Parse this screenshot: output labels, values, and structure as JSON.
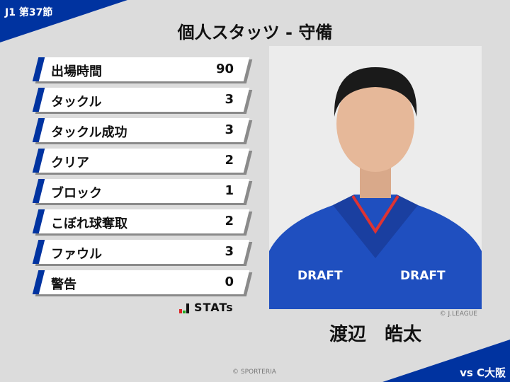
{
  "header": {
    "round": "J1 第37節",
    "title": "個人スタッツ - 守備"
  },
  "stats": [
    {
      "label": "出場時間",
      "value": "90"
    },
    {
      "label": "タックル",
      "value": "3"
    },
    {
      "label": "タックル成功",
      "value": "3"
    },
    {
      "label": "クリア",
      "value": "2"
    },
    {
      "label": "ブロック",
      "value": "1"
    },
    {
      "label": "こぼれ球奪取",
      "value": "2"
    },
    {
      "label": "ファウル",
      "value": "3"
    },
    {
      "label": "警告",
      "value": "0"
    }
  ],
  "logo": {
    "text": "STATs"
  },
  "player": {
    "name": "渡辺　皓太",
    "photo_credit": "© J.LEAGUE",
    "shirt_sponsor": "DRAFT"
  },
  "footer": {
    "copyright": "© SPORTERIA",
    "opponent": "vs  C大阪"
  },
  "colors": {
    "accent": "#0033a0",
    "background": "#dcdcdc"
  }
}
